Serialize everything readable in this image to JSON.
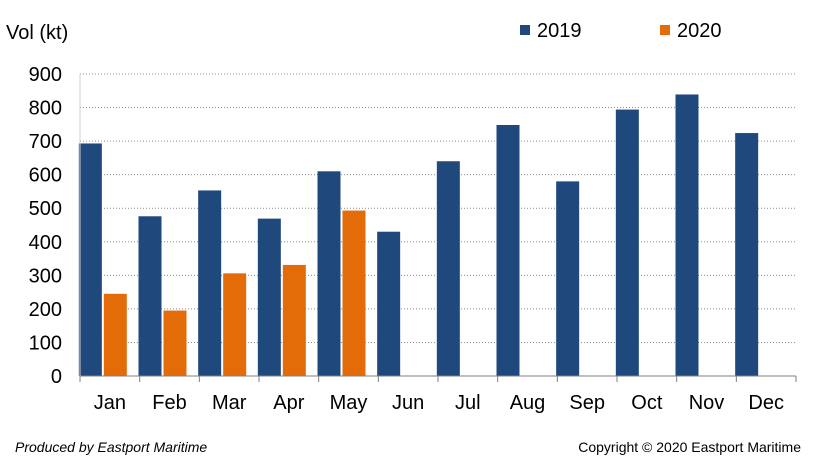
{
  "chart_data": {
    "type": "bar",
    "title": "",
    "xlabel": "",
    "ylabel": "Vol (kt)",
    "ylim": [
      0,
      900
    ],
    "yticks": [
      0,
      100,
      200,
      300,
      400,
      500,
      600,
      700,
      800,
      900
    ],
    "grid": true,
    "legend": "top-right",
    "categories": [
      "Jan",
      "Feb",
      "Mar",
      "Apr",
      "May",
      "Jun",
      "Jul",
      "Aug",
      "Sep",
      "Oct",
      "Nov",
      "Dec"
    ],
    "series": [
      {
        "name": "2019",
        "color": "#1f497d",
        "values": [
          693,
          476,
          553,
          469,
          610,
          430,
          640,
          748,
          580,
          794,
          839,
          724
        ]
      },
      {
        "name": "2020",
        "color": "#e36c09",
        "values": [
          245,
          195,
          306,
          331,
          493,
          null,
          null,
          null,
          null,
          null,
          null,
          null
        ]
      }
    ]
  },
  "footer": {
    "producer": "Produced by Eastport Maritime",
    "copyright": "Copyright © 2020 Eastport Maritime"
  }
}
